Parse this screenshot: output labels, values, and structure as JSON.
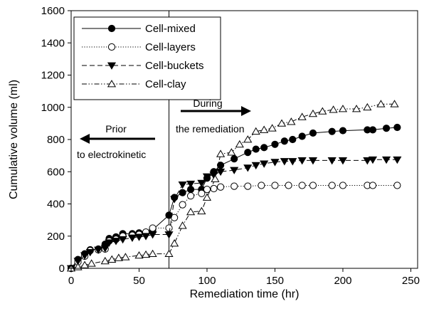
{
  "chart_data": {
    "type": "line",
    "xlabel": "Remediation time (hr)",
    "ylabel": "Cumulative volume (ml)",
    "xlim": [
      0,
      255
    ],
    "ylim": [
      0,
      1600
    ],
    "x_ticks": [
      0,
      50,
      100,
      150,
      200,
      250
    ],
    "y_ticks": [
      0,
      200,
      400,
      600,
      800,
      1000,
      1200,
      1400,
      1600
    ],
    "legend_position": "top-left",
    "grid": false,
    "reference_line_x": 72,
    "annotations": {
      "prior_line1": "Prior",
      "prior_line2": "to electrokinetic",
      "during_line1": "During",
      "during_line2": "the remediation"
    },
    "series": [
      {
        "name": "Cell-mixed",
        "marker": "filled-circle",
        "line_style": "solid",
        "points": [
          [
            0,
            0
          ],
          [
            5,
            55
          ],
          [
            10,
            90
          ],
          [
            14,
            115
          ],
          [
            20,
            120
          ],
          [
            25,
            150
          ],
          [
            28,
            185
          ],
          [
            33,
            195
          ],
          [
            38,
            215
          ],
          [
            45,
            215
          ],
          [
            50,
            220
          ],
          [
            55,
            220
          ],
          [
            60,
            240
          ],
          [
            72,
            330
          ],
          [
            76,
            440
          ],
          [
            82,
            470
          ],
          [
            88,
            490
          ],
          [
            96,
            490
          ],
          [
            100,
            560
          ],
          [
            105,
            600
          ],
          [
            110,
            640
          ],
          [
            120,
            680
          ],
          [
            130,
            720
          ],
          [
            136,
            740
          ],
          [
            142,
            750
          ],
          [
            150,
            770
          ],
          [
            157,
            790
          ],
          [
            163,
            800
          ],
          [
            170,
            820
          ],
          [
            178,
            840
          ],
          [
            192,
            850
          ],
          [
            200,
            855
          ],
          [
            218,
            860
          ],
          [
            222,
            860
          ],
          [
            232,
            870
          ],
          [
            240,
            875
          ]
        ]
      },
      {
        "name": "Cell-layers",
        "marker": "open-circle",
        "line_style": "dotted",
        "points": [
          [
            0,
            0
          ],
          [
            5,
            40
          ],
          [
            10,
            75
          ],
          [
            14,
            110
          ],
          [
            20,
            115
          ],
          [
            25,
            120
          ],
          [
            28,
            170
          ],
          [
            33,
            180
          ],
          [
            38,
            200
          ],
          [
            45,
            205
          ],
          [
            50,
            210
          ],
          [
            55,
            225
          ],
          [
            60,
            250
          ],
          [
            72,
            250
          ],
          [
            76,
            315
          ],
          [
            82,
            395
          ],
          [
            88,
            450
          ],
          [
            96,
            465
          ],
          [
            100,
            490
          ],
          [
            105,
            495
          ],
          [
            110,
            505
          ],
          [
            120,
            510
          ],
          [
            130,
            510
          ],
          [
            140,
            515
          ],
          [
            150,
            515
          ],
          [
            160,
            515
          ],
          [
            170,
            515
          ],
          [
            178,
            515
          ],
          [
            192,
            515
          ],
          [
            200,
            515
          ],
          [
            218,
            515
          ],
          [
            222,
            515
          ],
          [
            240,
            515
          ]
        ]
      },
      {
        "name": "Cell-buckets",
        "marker": "filled-down-triangle",
        "line_style": "dashed",
        "points": [
          [
            0,
            0
          ],
          [
            5,
            45
          ],
          [
            10,
            80
          ],
          [
            14,
            100
          ],
          [
            20,
            115
          ],
          [
            25,
            125
          ],
          [
            28,
            160
          ],
          [
            33,
            170
          ],
          [
            38,
            180
          ],
          [
            45,
            190
          ],
          [
            50,
            195
          ],
          [
            55,
            200
          ],
          [
            60,
            210
          ],
          [
            72,
            210
          ],
          [
            76,
            430
          ],
          [
            82,
            520
          ],
          [
            88,
            525
          ],
          [
            96,
            530
          ],
          [
            100,
            570
          ],
          [
            105,
            580
          ],
          [
            110,
            600
          ],
          [
            120,
            610
          ],
          [
            130,
            625
          ],
          [
            136,
            640
          ],
          [
            142,
            650
          ],
          [
            150,
            660
          ],
          [
            157,
            665
          ],
          [
            163,
            665
          ],
          [
            170,
            670
          ],
          [
            178,
            670
          ],
          [
            192,
            670
          ],
          [
            200,
            670
          ],
          [
            218,
            670
          ],
          [
            222,
            675
          ],
          [
            232,
            675
          ],
          [
            240,
            675
          ]
        ]
      },
      {
        "name": "Cell-clay",
        "marker": "open-up-triangle",
        "line_style": "dash-dot-dot",
        "points": [
          [
            0,
            0
          ],
          [
            5,
            8
          ],
          [
            10,
            20
          ],
          [
            15,
            30
          ],
          [
            25,
            45
          ],
          [
            30,
            55
          ],
          [
            35,
            65
          ],
          [
            40,
            70
          ],
          [
            50,
            80
          ],
          [
            55,
            85
          ],
          [
            60,
            90
          ],
          [
            72,
            90
          ],
          [
            76,
            155
          ],
          [
            82,
            265
          ],
          [
            88,
            350
          ],
          [
            96,
            355
          ],
          [
            100,
            440
          ],
          [
            106,
            555
          ],
          [
            110,
            710
          ],
          [
            118,
            720
          ],
          [
            124,
            770
          ],
          [
            130,
            800
          ],
          [
            136,
            850
          ],
          [
            142,
            860
          ],
          [
            148,
            870
          ],
          [
            155,
            900
          ],
          [
            162,
            910
          ],
          [
            170,
            940
          ],
          [
            178,
            960
          ],
          [
            185,
            975
          ],
          [
            193,
            985
          ],
          [
            200,
            990
          ],
          [
            210,
            990
          ],
          [
            218,
            1000
          ],
          [
            228,
            1020
          ],
          [
            238,
            1020
          ]
        ]
      }
    ]
  }
}
